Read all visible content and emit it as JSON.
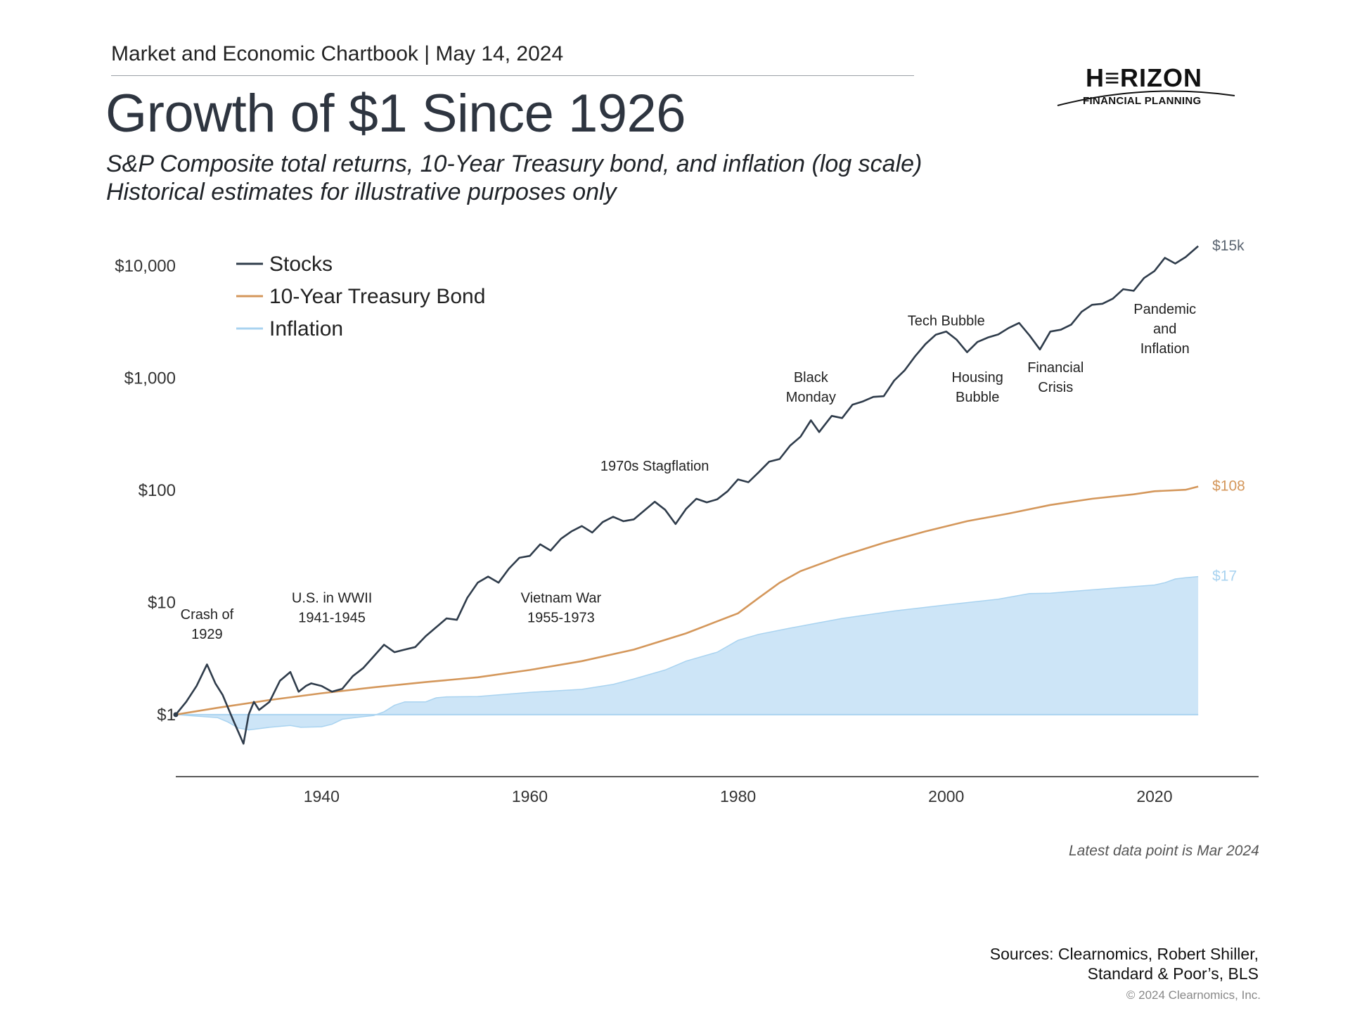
{
  "header": {
    "label": "Market and Economic Chartbook | May 14, 2024",
    "title": "Growth of $1 Since 1926",
    "subtitle_1": "S&P Composite total returns, 10-Year Treasury bond, and inflation (log scale)",
    "subtitle_2": "Historical estimates for illustrative purposes only"
  },
  "logo": {
    "word": "H≡RIZON",
    "sub": "FINANCIAL PLANNING"
  },
  "footer": {
    "latest": "Latest data point is Mar 2024",
    "sources_1": "Sources: Clearnomics, Robert Shiller,",
    "sources_2": "Standard & Poor’s, BLS",
    "copyright": "© 2024 Clearnomics, Inc."
  },
  "colors": {
    "stocks": "#2f3c4b",
    "bond": "#d4975b",
    "inflation_fill": "#cde5f7",
    "inflation_line": "#a9d3f0",
    "axis": "#222222",
    "text": "#333333"
  },
  "chart_data": {
    "type": "line",
    "y_scale": "log",
    "ylim": [
      0.28,
      20000
    ],
    "xlim": [
      1926,
      2030
    ],
    "y_ticks": [
      {
        "value": 1,
        "label": "$1"
      },
      {
        "value": 10,
        "label": "$10"
      },
      {
        "value": 100,
        "label": "$100"
      },
      {
        "value": 1000,
        "label": "$1,000"
      },
      {
        "value": 10000,
        "label": "$10,000"
      }
    ],
    "x_ticks": [
      {
        "value": 1940,
        "label": "1940"
      },
      {
        "value": 1960,
        "label": "1960"
      },
      {
        "value": 1980,
        "label": "1980"
      },
      {
        "value": 2000,
        "label": "2000"
      },
      {
        "value": 2020,
        "label": "2020"
      }
    ],
    "legend": {
      "position": "top-left",
      "entries": [
        "Stocks",
        "10-Year Treasury Bond",
        "Inflation"
      ]
    },
    "series": [
      {
        "name": "Stocks",
        "style": "line",
        "end_label": "$15k",
        "points": [
          [
            1926,
            1.0
          ],
          [
            1927,
            1.3
          ],
          [
            1928,
            1.8
          ],
          [
            1929,
            2.8
          ],
          [
            1929.8,
            1.9
          ],
          [
            1930.5,
            1.5
          ],
          [
            1931.5,
            0.9
          ],
          [
            1932.5,
            0.55
          ],
          [
            1933,
            1.0
          ],
          [
            1933.5,
            1.3
          ],
          [
            1934,
            1.1
          ],
          [
            1935,
            1.3
          ],
          [
            1936,
            2.0
          ],
          [
            1937,
            2.4
          ],
          [
            1937.8,
            1.6
          ],
          [
            1938.5,
            1.8
          ],
          [
            1939,
            1.9
          ],
          [
            1940,
            1.8
          ],
          [
            1941,
            1.6
          ],
          [
            1942,
            1.7
          ],
          [
            1943,
            2.2
          ],
          [
            1944,
            2.6
          ],
          [
            1945,
            3.3
          ],
          [
            1946,
            4.2
          ],
          [
            1947,
            3.6
          ],
          [
            1948,
            3.8
          ],
          [
            1949,
            4.0
          ],
          [
            1950,
            5.0
          ],
          [
            1951,
            6.0
          ],
          [
            1952,
            7.2
          ],
          [
            1953,
            7.0
          ],
          [
            1954,
            11.0
          ],
          [
            1955,
            15.0
          ],
          [
            1956,
            17.0
          ],
          [
            1957,
            15.0
          ],
          [
            1958,
            20.0
          ],
          [
            1959,
            25.0
          ],
          [
            1960,
            26.0
          ],
          [
            1961,
            33.0
          ],
          [
            1962,
            29.0
          ],
          [
            1963,
            37.0
          ],
          [
            1964,
            43.0
          ],
          [
            1965,
            48.0
          ],
          [
            1966,
            42.0
          ],
          [
            1967,
            52.0
          ],
          [
            1968,
            58.0
          ],
          [
            1969,
            53.0
          ],
          [
            1970,
            55.0
          ],
          [
            1971,
            66.0
          ],
          [
            1972,
            79.0
          ],
          [
            1973,
            67.0
          ],
          [
            1974,
            50.0
          ],
          [
            1975,
            68.0
          ],
          [
            1976,
            84.0
          ],
          [
            1977,
            78.0
          ],
          [
            1978,
            83.0
          ],
          [
            1979,
            98.0
          ],
          [
            1980,
            125.0
          ],
          [
            1981,
            118.0
          ],
          [
            1982,
            145.0
          ],
          [
            1983,
            180.0
          ],
          [
            1984,
            190.0
          ],
          [
            1985,
            250.0
          ],
          [
            1986,
            300.0
          ],
          [
            1987,
            420.0
          ],
          [
            1987.8,
            330.0
          ],
          [
            1988,
            350.0
          ],
          [
            1989,
            460.0
          ],
          [
            1990,
            440.0
          ],
          [
            1991,
            580.0
          ],
          [
            1992,
            620.0
          ],
          [
            1993,
            680.0
          ],
          [
            1994,
            690.0
          ],
          [
            1995,
            950.0
          ],
          [
            1996,
            1170.0
          ],
          [
            1997,
            1560.0
          ],
          [
            1998,
            2010.0
          ],
          [
            1999,
            2440.0
          ],
          [
            2000,
            2600.0
          ],
          [
            2001,
            2200.0
          ],
          [
            2002,
            1700.0
          ],
          [
            2003,
            2100.0
          ],
          [
            2004,
            2300.0
          ],
          [
            2005,
            2450.0
          ],
          [
            2006,
            2800.0
          ],
          [
            2007,
            3100.0
          ],
          [
            2008,
            2400.0
          ],
          [
            2009,
            1800.0
          ],
          [
            2010,
            2600.0
          ],
          [
            2011,
            2700.0
          ],
          [
            2012,
            3000.0
          ],
          [
            2013,
            3900.0
          ],
          [
            2014,
            4500.0
          ],
          [
            2015,
            4600.0
          ],
          [
            2016,
            5100.0
          ],
          [
            2017,
            6200.0
          ],
          [
            2018,
            6000.0
          ],
          [
            2019,
            7800.0
          ],
          [
            2020,
            9000.0
          ],
          [
            2021,
            11800.0
          ],
          [
            2022,
            10500.0
          ],
          [
            2023,
            12000.0
          ],
          [
            2024.2,
            15000.0
          ]
        ]
      },
      {
        "name": "10-Year Treasury Bond",
        "style": "line",
        "end_label": "$108",
        "points": [
          [
            1926,
            1.0
          ],
          [
            1930,
            1.15
          ],
          [
            1935,
            1.35
          ],
          [
            1940,
            1.55
          ],
          [
            1945,
            1.75
          ],
          [
            1950,
            1.95
          ],
          [
            1955,
            2.15
          ],
          [
            1960,
            2.5
          ],
          [
            1965,
            3.0
          ],
          [
            1970,
            3.8
          ],
          [
            1975,
            5.3
          ],
          [
            1980,
            8.0
          ],
          [
            1982,
            11.0
          ],
          [
            1984,
            15.0
          ],
          [
            1986,
            19.0
          ],
          [
            1990,
            26.0
          ],
          [
            1994,
            34.0
          ],
          [
            1998,
            43.0
          ],
          [
            2002,
            53.0
          ],
          [
            2006,
            62.0
          ],
          [
            2010,
            74.0
          ],
          [
            2014,
            84.0
          ],
          [
            2018,
            92.0
          ],
          [
            2020,
            98.0
          ],
          [
            2023,
            101.0
          ],
          [
            2024.2,
            108.0
          ]
        ]
      },
      {
        "name": "Inflation",
        "style": "area",
        "end_label": "$17",
        "points": [
          [
            1926,
            1.0
          ],
          [
            1928,
            0.97
          ],
          [
            1930,
            0.94
          ],
          [
            1931,
            0.86
          ],
          [
            1932,
            0.76
          ],
          [
            1933,
            0.73
          ],
          [
            1935,
            0.77
          ],
          [
            1937,
            0.8
          ],
          [
            1938,
            0.77
          ],
          [
            1940,
            0.78
          ],
          [
            1941,
            0.82
          ],
          [
            1942,
            0.91
          ],
          [
            1944,
            0.96
          ],
          [
            1945,
            0.98
          ],
          [
            1946,
            1.06
          ],
          [
            1947,
            1.21
          ],
          [
            1948,
            1.3
          ],
          [
            1950,
            1.3
          ],
          [
            1951,
            1.41
          ],
          [
            1952,
            1.44
          ],
          [
            1955,
            1.45
          ],
          [
            1957,
            1.5
          ],
          [
            1960,
            1.58
          ],
          [
            1965,
            1.68
          ],
          [
            1968,
            1.86
          ],
          [
            1970,
            2.08
          ],
          [
            1973,
            2.5
          ],
          [
            1975,
            3.0
          ],
          [
            1978,
            3.6
          ],
          [
            1980,
            4.6
          ],
          [
            1982,
            5.2
          ],
          [
            1985,
            5.9
          ],
          [
            1990,
            7.2
          ],
          [
            1995,
            8.4
          ],
          [
            2000,
            9.5
          ],
          [
            2005,
            10.7
          ],
          [
            2008,
            12.0
          ],
          [
            2010,
            12.1
          ],
          [
            2015,
            13.2
          ],
          [
            2020,
            14.3
          ],
          [
            2021,
            15.0
          ],
          [
            2022,
            16.2
          ],
          [
            2023,
            16.6
          ],
          [
            2024.2,
            17.0
          ]
        ]
      }
    ],
    "annotations": [
      {
        "lines": [
          "Crash of",
          "1929"
        ],
        "x": 1929,
        "y": 7.1
      },
      {
        "lines": [
          "U.S. in WWII",
          "1941-1945"
        ],
        "x": 1941,
        "y": 10.0
      },
      {
        "lines": [
          "Vietnam War",
          "1955-1973"
        ],
        "x": 1963,
        "y": 10.0
      },
      {
        "lines": [
          "1970s Stagflation"
        ],
        "x": 1972,
        "y": 150
      },
      {
        "lines": [
          "Black",
          "Monday"
        ],
        "x": 1987,
        "y": 920
      },
      {
        "lines": [
          "Tech Bubble"
        ],
        "x": 2000,
        "y": 2950
      },
      {
        "lines": [
          "Housing",
          "Bubble"
        ],
        "x": 2003,
        "y": 920
      },
      {
        "lines": [
          "Financial",
          "Crisis"
        ],
        "x": 2010.5,
        "y": 1130
      },
      {
        "lines": [
          "Pandemic",
          "and",
          "Inflation"
        ],
        "x": 2021,
        "y": 3750
      }
    ]
  }
}
